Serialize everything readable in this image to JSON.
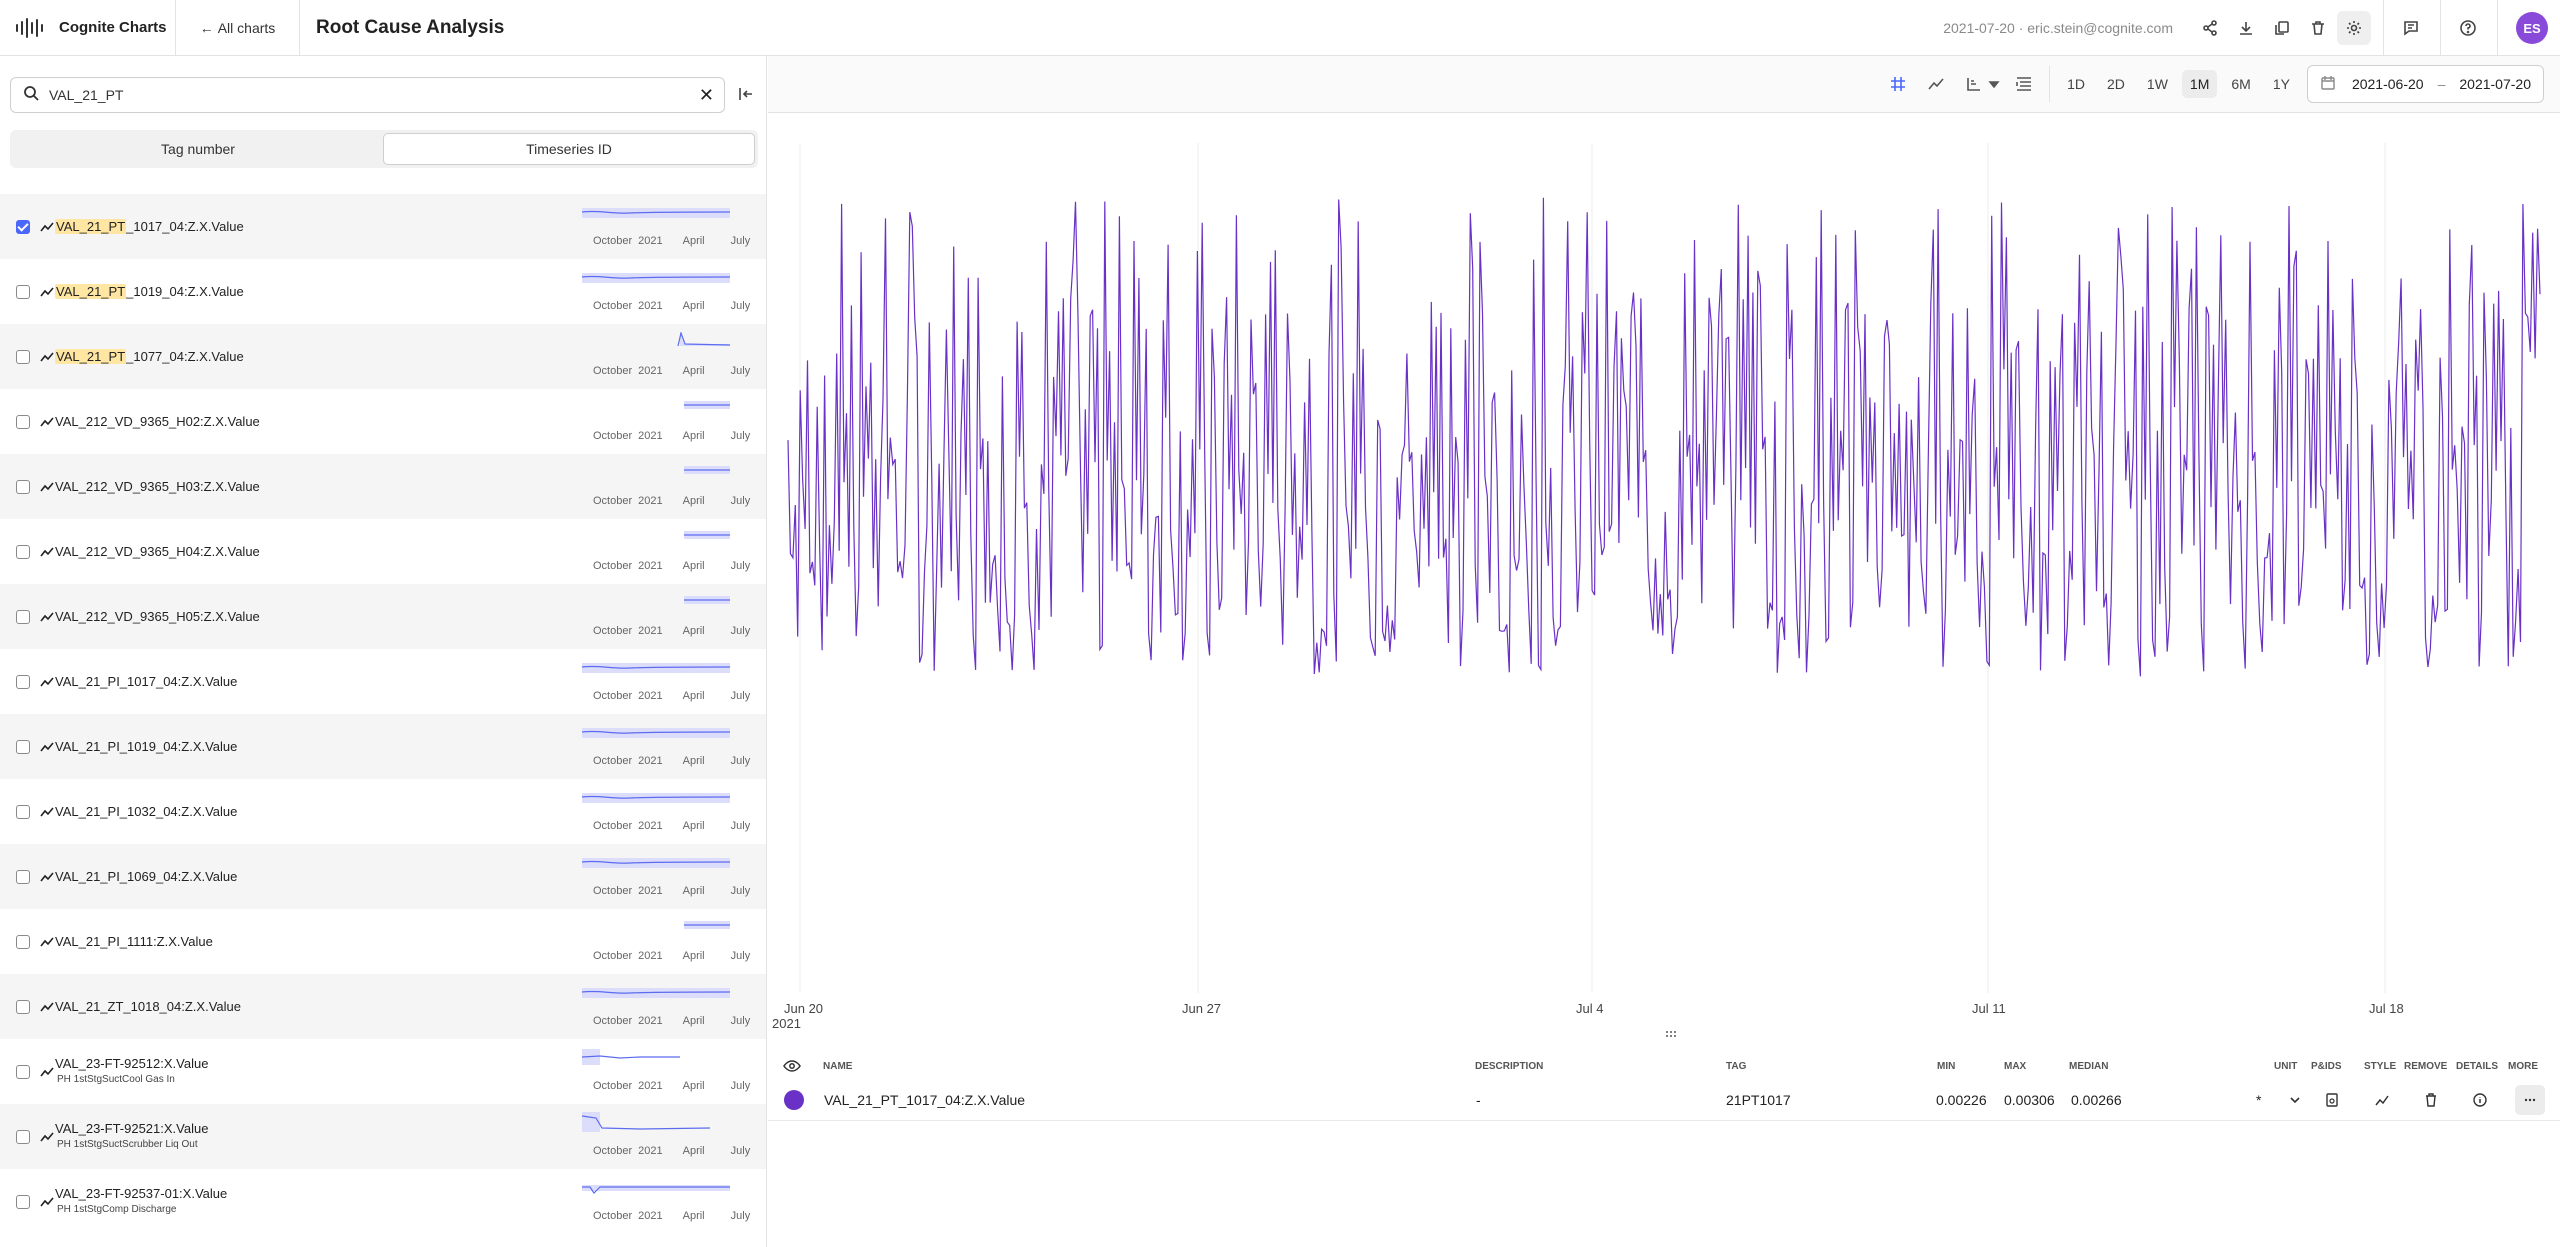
{
  "topbar": {
    "app_name": "Cognite Charts",
    "back_label": "All charts",
    "chart_title": "Root Cause Analysis",
    "user_info": "2021-07-20 · eric.stein@cognite.com",
    "avatar_initials": "ES",
    "icons": [
      "share-icon",
      "download-icon",
      "duplicate-icon",
      "delete-icon",
      "settings-icon",
      "comments-icon",
      "help-icon"
    ]
  },
  "search": {
    "value": "VAL_21_PT",
    "tabs": [
      "Tag number",
      "Timeseries ID"
    ],
    "selected_tab": "Timeseries ID"
  },
  "results": [
    {
      "highlight": "VAL_21_PT",
      "rest": "_1017_04:Z.X.Value",
      "desc": "",
      "checked": true,
      "spark": "flat"
    },
    {
      "highlight": "VAL_21_PT",
      "rest": "_1019_04:Z.X.Value",
      "desc": "",
      "checked": false,
      "spark": "flat"
    },
    {
      "highlight": "VAL_21_PT",
      "rest": "_1077_04:Z.X.Value",
      "desc": "",
      "checked": false,
      "spark": "spike"
    },
    {
      "highlight": "",
      "rest": "VAL_212_VD_9365_H02:Z.X.Value",
      "desc": "",
      "checked": false,
      "spark": "late"
    },
    {
      "highlight": "",
      "rest": "VAL_212_VD_9365_H03:Z.X.Value",
      "desc": "",
      "checked": false,
      "spark": "late"
    },
    {
      "highlight": "",
      "rest": "VAL_212_VD_9365_H04:Z.X.Value",
      "desc": "",
      "checked": false,
      "spark": "late"
    },
    {
      "highlight": "",
      "rest": "VAL_212_VD_9365_H05:Z.X.Value",
      "desc": "",
      "checked": false,
      "spark": "late"
    },
    {
      "highlight": "",
      "rest": "VAL_21_PI_1017_04:Z.X.Value",
      "desc": "",
      "checked": false,
      "spark": "flat"
    },
    {
      "highlight": "",
      "rest": "VAL_21_PI_1019_04:Z.X.Value",
      "desc": "",
      "checked": false,
      "spark": "flat"
    },
    {
      "highlight": "",
      "rest": "VAL_21_PI_1032_04:Z.X.Value",
      "desc": "",
      "checked": false,
      "spark": "flat"
    },
    {
      "highlight": "",
      "rest": "VAL_21_PI_1069_04:Z.X.Value",
      "desc": "",
      "checked": false,
      "spark": "flat"
    },
    {
      "highlight": "",
      "rest": "VAL_21_PI_1111:Z.X.Value",
      "desc": "",
      "checked": false,
      "spark": "late"
    },
    {
      "highlight": "",
      "rest": "VAL_21_ZT_1018_04:Z.X.Value",
      "desc": "",
      "checked": false,
      "spark": "flat"
    },
    {
      "highlight": "",
      "rest": "VAL_23-FT-92512:X.Value",
      "desc": "PH 1stStgSuctCool Gas In",
      "checked": false,
      "spark": "short"
    },
    {
      "highlight": "",
      "rest": "VAL_23-FT-92521:X.Value",
      "desc": "PH 1stStgSuctScrubber Liq Out",
      "checked": false,
      "spark": "drop"
    },
    {
      "highlight": "",
      "rest": "VAL_23-FT-92537-01:X.Value",
      "desc": "PH 1stStgComp Discharge",
      "checked": false,
      "spark": "dip"
    }
  ],
  "spark_axis": [
    "October",
    "2021",
    "April",
    "July"
  ],
  "chart_toolbar": {
    "ranges": [
      "1D",
      "2D",
      "1W",
      "1M",
      "6M",
      "1Y"
    ],
    "active_range": "1M",
    "date_from": "2021-06-20",
    "date_to": "2021-07-20",
    "separator": "–"
  },
  "chart_data": {
    "type": "line",
    "x_ticks": [
      "Jun 20",
      "Jun 27",
      "Jul 4",
      "Jul 11",
      "Jul 18"
    ],
    "x_tick_sub": "2021",
    "series_color": "#6a31c6",
    "x_range": [
      "2021-06-20",
      "2021-07-20"
    ],
    "y_range": [
      0.00226,
      0.00306
    ],
    "grid": true,
    "series": [
      {
        "name": "VAL_21_PT_1017_04:Z.X.Value",
        "min": 0.00226,
        "max": 0.00306,
        "median": 0.00266
      }
    ]
  },
  "legend_table": {
    "headers": {
      "name": "NAME",
      "description": "DESCRIPTION",
      "tag": "TAG",
      "min": "MIN",
      "max": "MAX",
      "median": "MEDIAN",
      "unit": "UNIT",
      "pids": "P&IDS",
      "style": "STYLE",
      "remove": "REMOVE",
      "details": "DETAILS",
      "more": "MORE"
    },
    "rows": [
      {
        "name": "VAL_21_PT_1017_04:Z.X.Value",
        "description": "-",
        "tag": "21PT1017",
        "min": "0.00226",
        "max": "0.00306",
        "median": "0.00266",
        "unit": "*"
      }
    ]
  }
}
